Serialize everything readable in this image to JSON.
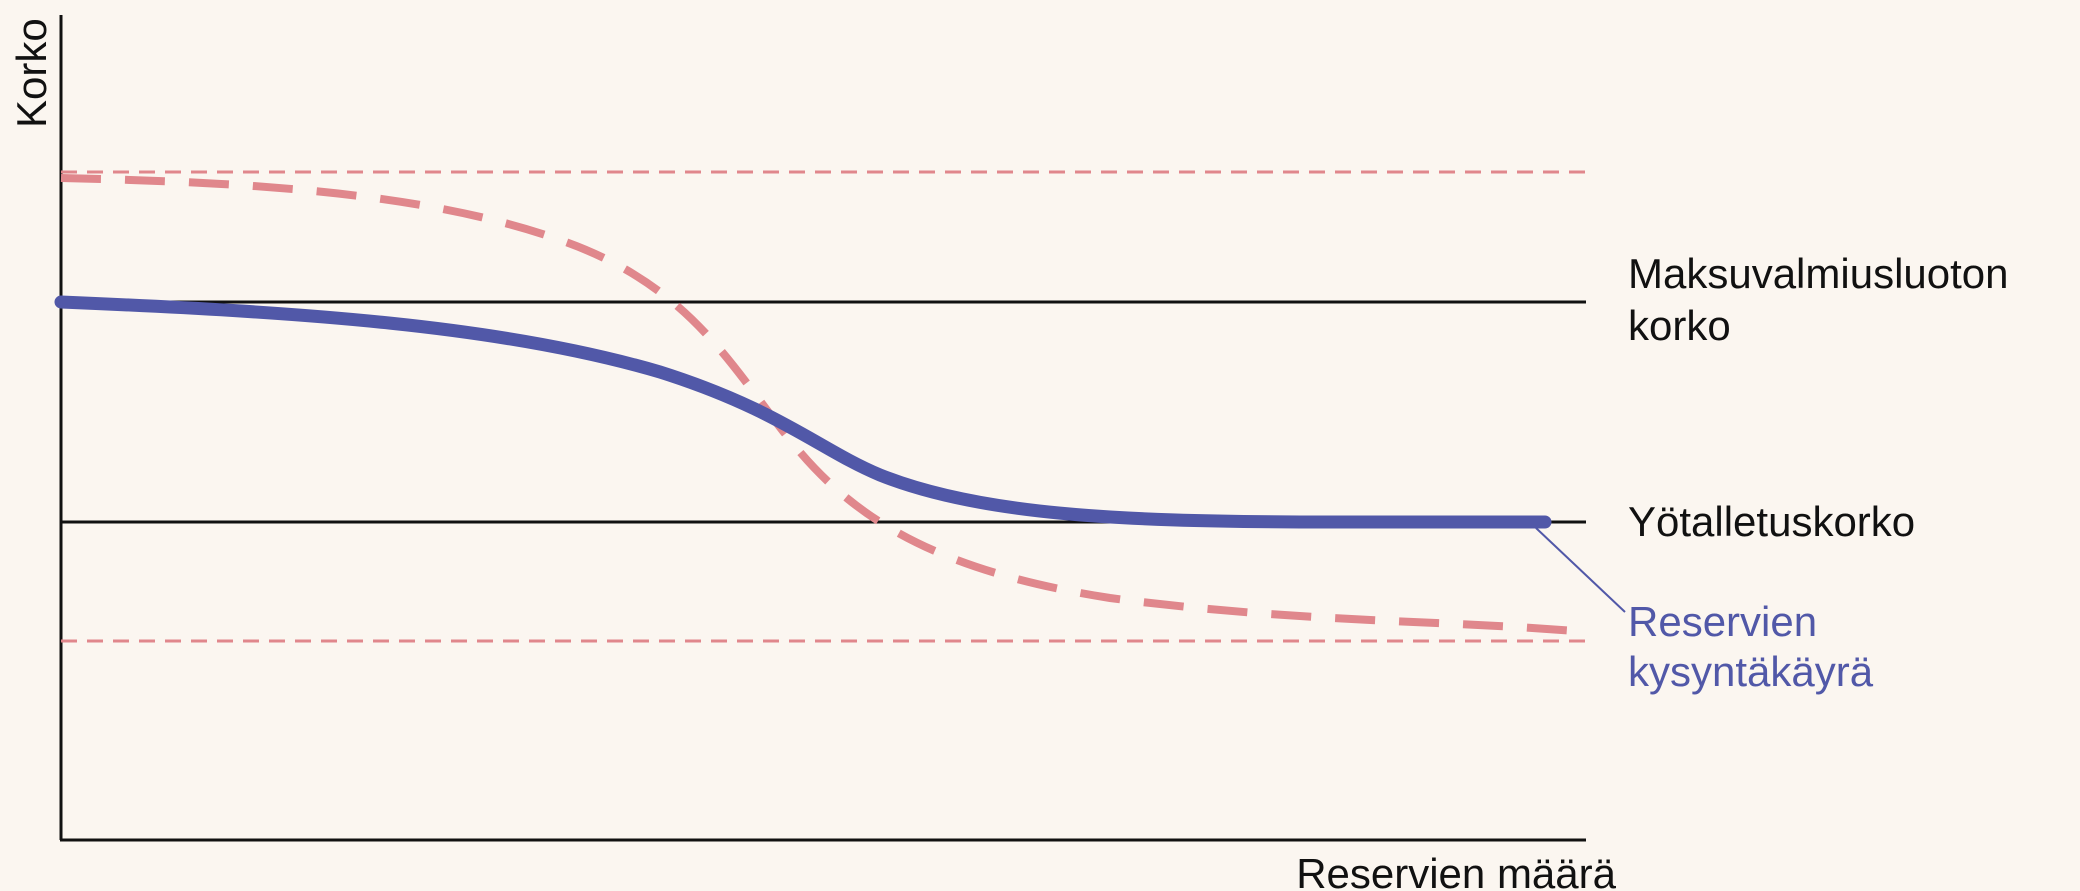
{
  "axes": {
    "y_label": "Korko",
    "x_label": "Reservien määrä"
  },
  "rates": {
    "upper_label_line1": "Maksuvalmiusluoton",
    "upper_label_line2": "korko",
    "lower_label": "Yötalletuskorko"
  },
  "curve": {
    "label_line1": "Reservien",
    "label_line2": "kysyntäkäyrä"
  },
  "colors": {
    "background": "#fbf6f0",
    "axis": "#111111",
    "demand_curve": "#5158a8",
    "dashed": "#e0878c",
    "curve_label": "#5158a8"
  }
}
